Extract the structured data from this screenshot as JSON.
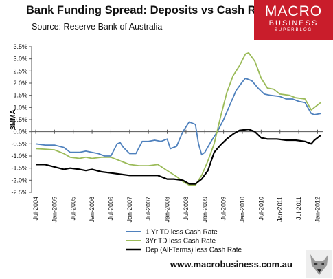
{
  "header": {
    "title": "Bank Funding Spread: Deposits vs Cash Rate",
    "subtitle": "Source: Reserve Bank of Australia"
  },
  "logo": {
    "line1": "MACRO",
    "line2": "BUSINESS",
    "line3": "SUPERBLOG"
  },
  "footer": {
    "url": "www.macrobusiness.com.au"
  },
  "chart_data": {
    "type": "line",
    "ylabel": "3MMA",
    "xlabel": "",
    "ylim": [
      -2.5,
      3.5
    ],
    "yticks": [
      -2.5,
      -2.0,
      -1.5,
      -1.0,
      -0.5,
      0.0,
      0.5,
      1.0,
      1.5,
      2.0,
      2.5,
      3.0,
      3.5
    ],
    "ytick_labels": [
      "-2.5%",
      "-2.0%",
      "-1.5%",
      "-1.0%",
      "-0.5%",
      "0.0%",
      "0.5%",
      "1.0%",
      "1.5%",
      "2.0%",
      "2.5%",
      "3.0%",
      "3.5%"
    ],
    "x_tick_labels": [
      "Jul-2004",
      "Jan-2005",
      "Jul-2005",
      "Jan-2006",
      "Jul-2006",
      "Jan-2007",
      "Jul-2007",
      "Jan-2008",
      "Jul-2008",
      "Jan-2009",
      "Jul-2009",
      "Jan-2010",
      "Jul-2010",
      "Jan-2011",
      "Jul-2011",
      "Jan-2012"
    ],
    "x_tick_dates": [
      "2004-07",
      "2005-01",
      "2005-07",
      "2006-01",
      "2006-07",
      "2007-01",
      "2007-07",
      "2008-01",
      "2008-07",
      "2009-01",
      "2009-07",
      "2010-01",
      "2010-07",
      "2011-01",
      "2011-07",
      "2012-01"
    ],
    "grid": false,
    "legend_position": "bottom",
    "series": [
      {
        "name": "1 Yr TD less Cash Rate",
        "color": "#4f81bd",
        "points": [
          [
            "2004-07",
            -0.5
          ],
          [
            "2004-10",
            -0.55
          ],
          [
            "2005-01",
            -0.55
          ],
          [
            "2005-04",
            -0.65
          ],
          [
            "2005-06",
            -0.85
          ],
          [
            "2005-09",
            -0.85
          ],
          [
            "2005-11",
            -0.8
          ],
          [
            "2006-01",
            -0.85
          ],
          [
            "2006-03",
            -0.9
          ],
          [
            "2006-05",
            -1.0
          ],
          [
            "2006-07",
            -1.0
          ],
          [
            "2006-09",
            -0.5
          ],
          [
            "2006-10",
            -0.45
          ],
          [
            "2006-11",
            -0.65
          ],
          [
            "2007-01",
            -0.9
          ],
          [
            "2007-03",
            -0.9
          ],
          [
            "2007-05",
            -0.4
          ],
          [
            "2007-07",
            -0.4
          ],
          [
            "2007-09",
            -0.35
          ],
          [
            "2007-11",
            -0.4
          ],
          [
            "2008-01",
            -0.3
          ],
          [
            "2008-02",
            -0.7
          ],
          [
            "2008-04",
            -0.6
          ],
          [
            "2008-06",
            0.0
          ],
          [
            "2008-08",
            0.4
          ],
          [
            "2008-10",
            0.3
          ],
          [
            "2008-11",
            -0.5
          ],
          [
            "2008-12",
            -0.95
          ],
          [
            "2009-01",
            -0.85
          ],
          [
            "2009-03",
            -0.4
          ],
          [
            "2009-05",
            0.0
          ],
          [
            "2009-07",
            0.5
          ],
          [
            "2009-09",
            1.1
          ],
          [
            "2009-11",
            1.7
          ],
          [
            "2010-01",
            2.05
          ],
          [
            "2010-02",
            2.2
          ],
          [
            "2010-04",
            2.1
          ],
          [
            "2010-06",
            1.8
          ],
          [
            "2010-08",
            1.55
          ],
          [
            "2010-10",
            1.5
          ],
          [
            "2011-01",
            1.45
          ],
          [
            "2011-03",
            1.35
          ],
          [
            "2011-05",
            1.35
          ],
          [
            "2011-07",
            1.25
          ],
          [
            "2011-09",
            1.2
          ],
          [
            "2011-11",
            0.75
          ],
          [
            "2011-12",
            0.7
          ],
          [
            "2012-02",
            0.75
          ]
        ]
      },
      {
        "name": "3Yr TD less Cash Rate",
        "color": "#9bbb59",
        "points": [
          [
            "2004-07",
            -0.7
          ],
          [
            "2004-10",
            -0.72
          ],
          [
            "2005-01",
            -0.75
          ],
          [
            "2005-04",
            -0.9
          ],
          [
            "2005-06",
            -1.05
          ],
          [
            "2005-09",
            -1.1
          ],
          [
            "2005-11",
            -1.05
          ],
          [
            "2006-01",
            -1.1
          ],
          [
            "2006-04",
            -1.05
          ],
          [
            "2006-07",
            -1.05
          ],
          [
            "2006-10",
            -1.2
          ],
          [
            "2007-01",
            -1.35
          ],
          [
            "2007-04",
            -1.4
          ],
          [
            "2007-07",
            -1.4
          ],
          [
            "2007-10",
            -1.35
          ],
          [
            "2008-01",
            -1.6
          ],
          [
            "2008-04",
            -1.85
          ],
          [
            "2008-06",
            -2.05
          ],
          [
            "2008-08",
            -2.2
          ],
          [
            "2008-10",
            -2.2
          ],
          [
            "2008-12",
            -1.8
          ],
          [
            "2009-02",
            -1.2
          ],
          [
            "2009-04",
            -0.5
          ],
          [
            "2009-06",
            0.6
          ],
          [
            "2009-08",
            1.6
          ],
          [
            "2009-10",
            2.3
          ],
          [
            "2009-12",
            2.7
          ],
          [
            "2010-02",
            3.2
          ],
          [
            "2010-03",
            3.25
          ],
          [
            "2010-05",
            2.9
          ],
          [
            "2010-07",
            2.2
          ],
          [
            "2010-09",
            1.8
          ],
          [
            "2010-11",
            1.75
          ],
          [
            "2011-01",
            1.55
          ],
          [
            "2011-04",
            1.5
          ],
          [
            "2011-06",
            1.4
          ],
          [
            "2011-09",
            1.35
          ],
          [
            "2011-11",
            0.9
          ],
          [
            "2011-12",
            1.0
          ],
          [
            "2012-02",
            1.2
          ]
        ]
      },
      {
        "name": "Dep (All-Terms) less Cash Rate",
        "color": "#000000",
        "points": [
          [
            "2004-07",
            -1.35
          ],
          [
            "2004-10",
            -1.35
          ],
          [
            "2005-01",
            -1.45
          ],
          [
            "2005-04",
            -1.55
          ],
          [
            "2005-06",
            -1.5
          ],
          [
            "2005-09",
            -1.55
          ],
          [
            "2005-11",
            -1.6
          ],
          [
            "2006-01",
            -1.55
          ],
          [
            "2006-04",
            -1.65
          ],
          [
            "2006-07",
            -1.7
          ],
          [
            "2006-10",
            -1.75
          ],
          [
            "2007-01",
            -1.8
          ],
          [
            "2007-04",
            -1.8
          ],
          [
            "2007-07",
            -1.8
          ],
          [
            "2007-10",
            -1.8
          ],
          [
            "2008-01",
            -1.95
          ],
          [
            "2008-03",
            -1.95
          ],
          [
            "2008-06",
            -2.0
          ],
          [
            "2008-08",
            -2.15
          ],
          [
            "2008-10",
            -2.15
          ],
          [
            "2008-12",
            -1.95
          ],
          [
            "2009-02",
            -1.6
          ],
          [
            "2009-04",
            -0.85
          ],
          [
            "2009-06",
            -0.55
          ],
          [
            "2009-08",
            -0.3
          ],
          [
            "2009-10",
            -0.1
          ],
          [
            "2009-12",
            0.05
          ],
          [
            "2010-03",
            0.1
          ],
          [
            "2010-05",
            0.0
          ],
          [
            "2010-07",
            -0.25
          ],
          [
            "2010-09",
            -0.3
          ],
          [
            "2010-12",
            -0.3
          ],
          [
            "2011-03",
            -0.35
          ],
          [
            "2011-06",
            -0.35
          ],
          [
            "2011-09",
            -0.4
          ],
          [
            "2011-11",
            -0.5
          ],
          [
            "2011-12",
            -0.35
          ],
          [
            "2012-02",
            -0.15
          ]
        ]
      }
    ]
  }
}
